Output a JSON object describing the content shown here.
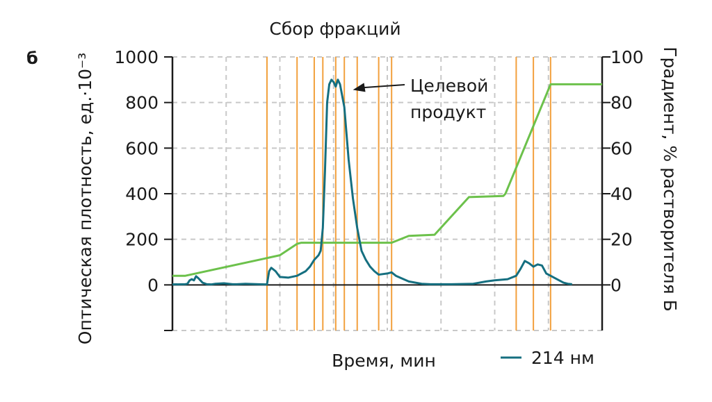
{
  "chart_data": {
    "type": "line",
    "panel_label": "б",
    "title": "Сбор фракций",
    "xlabel": "Время, мин",
    "ylabel_left": "Оптическая плотность, ед.·10⁻³",
    "ylabel_right": "Градиент, % растворителя Б",
    "y_left_ticks": [
      "1000",
      "800",
      "600",
      "400",
      "200",
      "0"
    ],
    "y_right_ticks": [
      "100",
      "80",
      "60",
      "40",
      "20",
      "0"
    ],
    "ylim_left": [
      -200,
      1000
    ],
    "ylim_right": [
      -20,
      100
    ],
    "xlim": [
      0,
      100
    ],
    "grid": true,
    "legend_position": "bottom-right",
    "annotation": {
      "line1": "Целевой",
      "line2": "продукт",
      "x": 42,
      "y": 880
    },
    "fraction_collection_x": [
      22,
      29,
      33,
      35,
      38,
      40,
      43,
      48,
      51,
      80,
      84,
      88
    ],
    "colors": {
      "absorbance": "#156f80",
      "gradient": "#6cc14b",
      "fractions": "#f2a03d",
      "grid": "#c8c8c8",
      "axis": "#1a1a1a"
    },
    "series": [
      {
        "name": "214 нм",
        "axis": "left",
        "x": [
          0,
          3,
          3.5,
          4,
          4.5,
          5,
          5.5,
          6,
          7,
          8,
          9,
          10,
          12,
          14,
          15,
          17,
          20,
          22,
          22.5,
          23,
          24,
          25,
          27,
          29,
          31,
          32,
          33,
          34,
          34.5,
          35,
          35.5,
          36,
          36.5,
          37,
          37.5,
          38,
          38.5,
          39,
          40,
          41,
          42,
          43,
          44,
          45,
          46,
          47,
          48,
          50,
          51,
          52,
          55,
          58,
          60,
          65,
          70,
          73,
          75,
          78,
          80,
          81,
          82,
          83,
          84,
          85,
          86,
          87,
          88,
          90,
          91,
          92,
          93
        ],
        "values": [
          2,
          3,
          5,
          20,
          25,
          20,
          38,
          30,
          10,
          3,
          2,
          5,
          7,
          3,
          3,
          5,
          3,
          2,
          60,
          75,
          60,
          35,
          32,
          40,
          60,
          80,
          110,
          130,
          150,
          250,
          500,
          800,
          880,
          900,
          890,
          870,
          900,
          880,
          780,
          550,
          380,
          250,
          150,
          110,
          80,
          60,
          45,
          50,
          55,
          40,
          15,
          5,
          3,
          3,
          5,
          15,
          20,
          25,
          40,
          70,
          105,
          95,
          80,
          90,
          85,
          50,
          40,
          20,
          10,
          5,
          3
        ]
      },
      {
        "name": "",
        "axis": "right",
        "x": [
          0,
          3,
          25,
          29,
          30,
          51,
          55,
          61,
          69,
          77,
          77.5,
          88,
          100
        ],
        "values": [
          4,
          4,
          13,
          18,
          18.5,
          18.5,
          21.5,
          22,
          38.5,
          39,
          40,
          88,
          88
        ]
      }
    ]
  }
}
